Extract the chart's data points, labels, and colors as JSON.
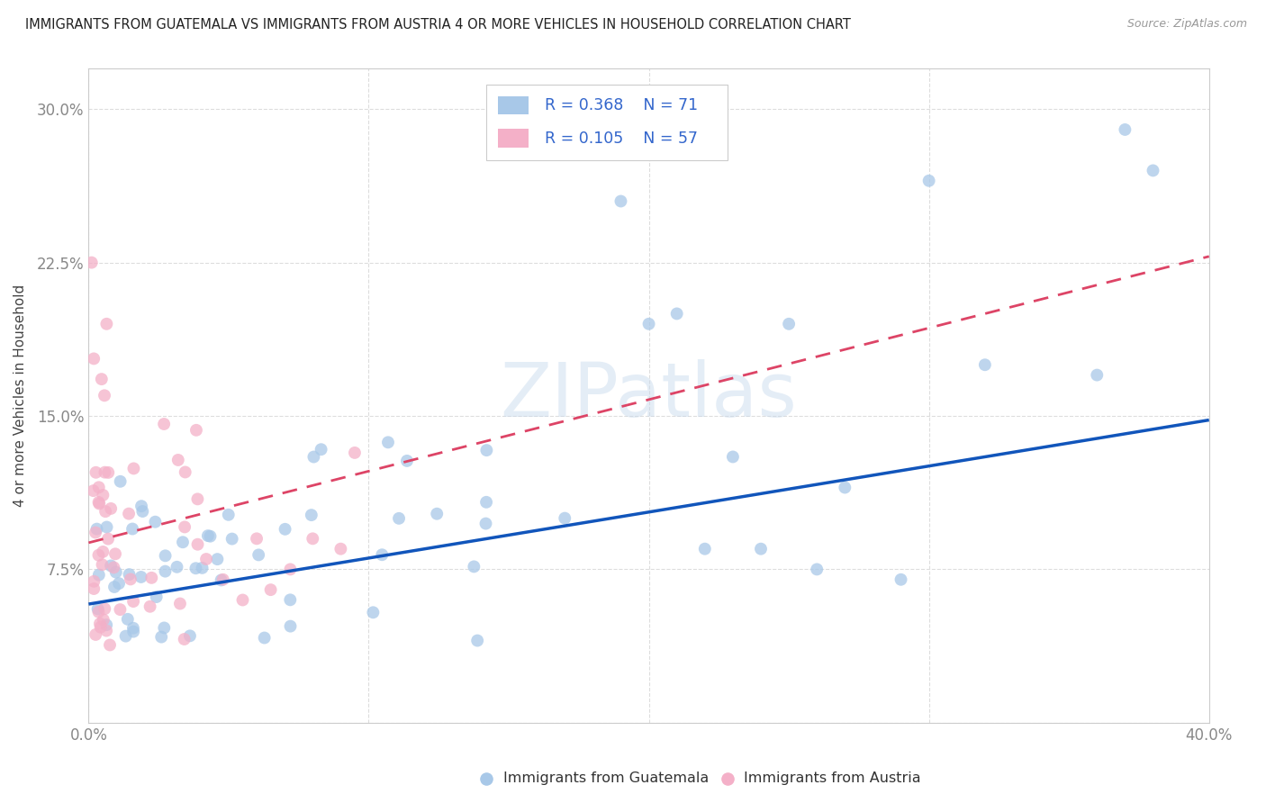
{
  "title": "IMMIGRANTS FROM GUATEMALA VS IMMIGRANTS FROM AUSTRIA 4 OR MORE VEHICLES IN HOUSEHOLD CORRELATION CHART",
  "source": "Source: ZipAtlas.com",
  "ylabel": "4 or more Vehicles in Household",
  "xlim": [
    0.0,
    0.4
  ],
  "ylim": [
    0.0,
    0.32
  ],
  "xticks": [
    0.0,
    0.1,
    0.2,
    0.3,
    0.4
  ],
  "xtick_labels": [
    "0.0%",
    "",
    "",
    "",
    "40.0%"
  ],
  "yticks": [
    0.0,
    0.075,
    0.15,
    0.225,
    0.3
  ],
  "ytick_labels": [
    "",
    "7.5%",
    "15.0%",
    "22.5%",
    "30.0%"
  ],
  "R_guatemala": "0.368",
  "N_guatemala": "71",
  "R_austria": "0.105",
  "N_austria": "57",
  "color_guatemala": "#a8c8e8",
  "color_austria": "#f4b0c8",
  "line_color_guatemala": "#1155bb",
  "line_color_austria": "#dd4466",
  "legend_text_color": "#3366cc",
  "legend_label_guatemala": "Immigrants from Guatemala",
  "legend_label_austria": "Immigrants from Austria",
  "watermark": "ZIPatlas",
  "guat_line_start_y": 0.058,
  "guat_line_end_y": 0.148,
  "aust_line_start_y": 0.088,
  "aust_line_end_y": 0.228
}
